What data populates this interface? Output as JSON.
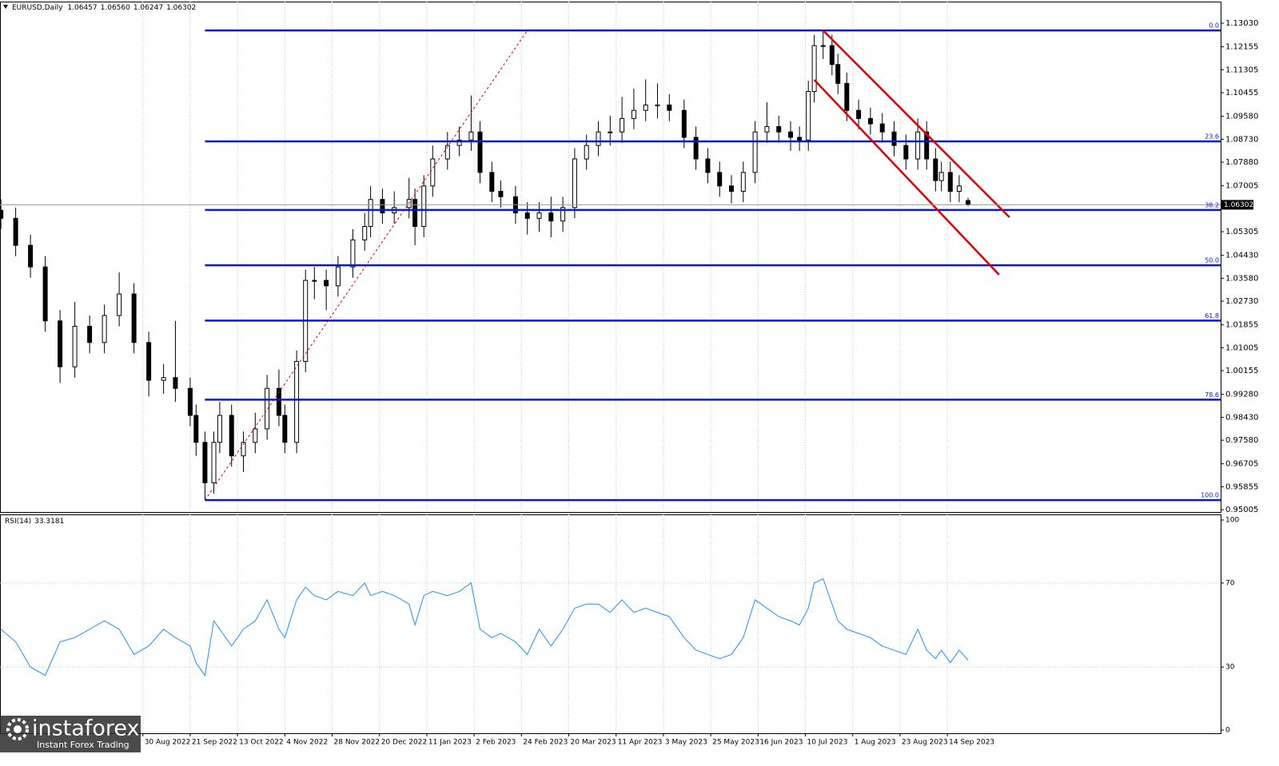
{
  "chart_data": {
    "type": "candlestick",
    "title": "EURUSD,Daily",
    "header_ohlc": [
      "1.06457",
      "1.06560",
      "1.06247",
      "1.06302"
    ],
    "x": [
      -64,
      -59,
      -54,
      -49,
      -44,
      -39,
      -34,
      -29,
      -24,
      -19,
      -14,
      -9,
      -5,
      0,
      2,
      5,
      8,
      10,
      14,
      18,
      22,
      26,
      30,
      32,
      36,
      39,
      42,
      46,
      50,
      55,
      59,
      61,
      65,
      69,
      74,
      76,
      79,
      82,
      87,
      91,
      95,
      98,
      102,
      105,
      110,
      114,
      118,
      122,
      126,
      130,
      134,
      138,
      142,
      146,
      150,
      154,
      158,
      162,
      167,
      171,
      175,
      179,
      183,
      187,
      191,
      195,
      199,
      203,
      206,
      209,
      211,
      214,
      217,
      219,
      222,
      226,
      230,
      234,
      238,
      242,
      246,
      249,
      252,
      254,
      257,
      260,
      263
    ],
    "open": [
      1.061,
      1.058,
      1.048,
      1.04,
      1.02,
      1.003,
      1.018,
      1.012,
      1.022,
      1.03,
      1.012,
      0.998,
      0.999,
      0.995,
      0.985,
      0.975,
      0.96,
      0.975,
      0.985,
      0.97,
      0.975,
      0.98,
      0.995,
      0.985,
      0.975,
      1.005,
      1.035,
      1.035,
      1.033,
      1.04,
      1.05,
      1.055,
      1.065,
      1.06,
      1.062,
      1.065,
      1.055,
      1.07,
      1.08,
      1.085,
      1.087,
      1.09,
      1.075,
      1.068,
      1.066,
      1.06,
      1.058,
      1.06,
      1.057,
      1.062,
      1.08,
      1.085,
      1.09,
      1.09,
      1.095,
      1.098,
      1.1,
      1.1,
      1.098,
      1.088,
      1.08,
      1.075,
      1.07,
      1.068,
      1.075,
      1.09,
      1.092,
      1.09,
      1.088,
      1.087,
      1.105,
      1.122,
      1.122,
      1.115,
      1.108,
      1.098,
      1.095,
      1.093,
      1.09,
      1.085,
      1.08,
      1.09,
      1.08,
      1.072,
      1.075,
      1.068,
      1.06457
    ],
    "high": [
      1.065,
      1.062,
      1.052,
      1.044,
      1.024,
      1.027,
      1.022,
      1.026,
      1.038,
      1.034,
      1.016,
      1.004,
      1.02,
      0.999,
      0.989,
      0.979,
      0.979,
      0.99,
      0.989,
      0.979,
      0.986,
      1.0,
      1.002,
      0.989,
      1.009,
      1.039,
      1.04,
      1.039,
      1.044,
      1.054,
      1.06,
      1.07,
      1.069,
      1.068,
      1.073,
      1.069,
      1.074,
      1.085,
      1.09,
      1.092,
      1.1035,
      1.094,
      1.079,
      1.072,
      1.07,
      1.064,
      1.064,
      1.066,
      1.066,
      1.084,
      1.089,
      1.094,
      1.096,
      1.103,
      1.106,
      1.1095,
      1.108,
      1.104,
      1.102,
      1.092,
      1.084,
      1.079,
      1.074,
      1.079,
      1.094,
      1.101,
      1.096,
      1.094,
      1.092,
      1.109,
      1.126,
      1.1276,
      1.126,
      1.119,
      1.112,
      1.102,
      1.099,
      1.097,
      1.094,
      1.089,
      1.095,
      1.094,
      1.084,
      1.079,
      1.079,
      1.074,
      1.0656
    ],
    "low": [
      1.054,
      1.044,
      1.036,
      1.016,
      0.997,
      0.999,
      1.008,
      1.008,
      1.018,
      1.008,
      0.992,
      0.993,
      0.99,
      0.981,
      0.97,
      0.9535,
      0.956,
      0.971,
      0.966,
      0.964,
      0.971,
      0.976,
      0.981,
      0.971,
      0.971,
      1.001,
      1.028,
      1.024,
      1.029,
      1.036,
      1.046,
      1.051,
      1.056,
      1.056,
      1.058,
      1.048,
      1.051,
      1.066,
      1.076,
      1.081,
      1.083,
      1.071,
      1.064,
      1.062,
      1.056,
      1.052,
      1.053,
      1.051,
      1.053,
      1.058,
      1.076,
      1.081,
      1.085,
      1.086,
      1.091,
      1.094,
      1.095,
      1.094,
      1.084,
      1.076,
      1.071,
      1.066,
      1.0635,
      1.064,
      1.071,
      1.086,
      1.086,
      1.083,
      1.083,
      1.083,
      1.101,
      1.117,
      1.111,
      1.104,
      1.094,
      1.091,
      1.089,
      1.086,
      1.081,
      1.076,
      1.076,
      1.076,
      1.068,
      1.068,
      1.064,
      1.064,
      1.06247
    ],
    "close": [
      1.058,
      1.048,
      1.04,
      1.02,
      1.003,
      1.018,
      1.012,
      1.022,
      1.03,
      1.012,
      0.998,
      0.999,
      0.995,
      0.985,
      0.975,
      0.96,
      0.975,
      0.985,
      0.97,
      0.975,
      0.98,
      0.995,
      0.985,
      0.975,
      1.005,
      1.035,
      1.035,
      1.033,
      1.04,
      1.05,
      1.055,
      1.065,
      1.06,
      1.062,
      1.065,
      1.055,
      1.07,
      1.08,
      1.085,
      1.087,
      1.09,
      1.075,
      1.068,
      1.066,
      1.06,
      1.058,
      1.06,
      1.057,
      1.062,
      1.08,
      1.085,
      1.09,
      1.09,
      1.095,
      1.098,
      1.1,
      1.1,
      1.098,
      1.088,
      1.08,
      1.075,
      1.07,
      1.068,
      1.075,
      1.09,
      1.092,
      1.09,
      1.088,
      1.087,
      1.105,
      1.122,
      1.122,
      1.115,
      1.108,
      1.098,
      1.095,
      1.093,
      1.09,
      1.085,
      1.08,
      1.09,
      1.08,
      1.072,
      1.075,
      1.068,
      1.07,
      1.06302
    ],
    "color_up": "#ffffff",
    "color_down": "#000000",
    "xlim": [
      -64.3,
      348.4
    ],
    "xticks": [
      {
        "value": -16,
        "label": "30 Aug 2022"
      },
      {
        "value": 0,
        "label": "21 Sep 2022"
      },
      {
        "value": 16,
        "label": "13 Oct 2022"
      },
      {
        "value": 32,
        "label": "4 Nov 2022"
      },
      {
        "value": 48,
        "label": "28 Nov 2022"
      },
      {
        "value": 64,
        "label": "20 Dec 2022"
      },
      {
        "value": 80,
        "label": "11 Jan 2023"
      },
      {
        "value": 96,
        "label": "2 Feb 2023"
      },
      {
        "value": 112,
        "label": "24 Feb 2023"
      },
      {
        "value": 128,
        "label": "20 Mar 2023"
      },
      {
        "value": 144,
        "label": "11 Apr 2023"
      },
      {
        "value": 160,
        "label": "3 May 2023"
      },
      {
        "value": 176,
        "label": "25 May 2023"
      },
      {
        "value": 192,
        "label": "16 Jun 2023"
      },
      {
        "value": 208,
        "label": "10 Jul 2023"
      },
      {
        "value": 224,
        "label": "1 Aug 2023"
      },
      {
        "value": 240,
        "label": "23 Aug 2023"
      },
      {
        "value": 256,
        "label": "14 Sep 2023"
      }
    ],
    "ylim": [
      0.9492,
      1.1383
    ],
    "yticks": [
      {
        "value": 1.1303,
        "label": "1.13030"
      },
      1.12155,
      1.11305,
      1.10455,
      {
        "value": 1.0958,
        "label": "1.09580"
      },
      {
        "value": 1.0873,
        "label": "1.08730"
      },
      {
        "value": 1.0788,
        "label": "1.07880"
      },
      1.07005,
      1.05305,
      {
        "value": 1.0443,
        "label": "1.04430"
      },
      {
        "value": 1.0358,
        "label": "1.03580"
      },
      {
        "value": 1.0273,
        "label": "1.02730"
      },
      1.01855,
      1.01005,
      1.00155,
      {
        "value": 0.9928,
        "label": "0.99280"
      },
      {
        "value": 0.9843,
        "label": "0.98430"
      },
      {
        "value": 0.9758,
        "label": "0.97580"
      },
      0.96705,
      0.95855,
      0.95005
    ],
    "grid": true,
    "fib_color": "#0b17d6",
    "fib_levels": [
      {
        "value": 1.1276,
        "label": "0.0"
      },
      {
        "value": 1.0865,
        "label": "23.6"
      },
      {
        "value": 1.0611,
        "label": "38.2"
      },
      {
        "value": 1.0406,
        "label": "50.0"
      },
      {
        "value": 1.0201,
        "label": "61.8"
      },
      {
        "value": 0.9908,
        "label": "78.6"
      },
      {
        "value": 0.9536,
        "label": "100.0"
      }
    ],
    "channel_color": "#e00000",
    "channel": [
      [
        {
          "x": 214,
          "y": 1.1276
        },
        {
          "x": 277,
          "y": 1.0584
        }
      ],
      [
        {
          "x": 211,
          "y": 1.1093
        },
        {
          "x": 273.5,
          "y": 1.0371
        }
      ]
    ],
    "anchor_line": [
      {
        "x": 5,
        "y": 0.9536
      },
      {
        "x": 114,
        "y": 1.1276
      }
    ],
    "rsi": {
      "name": "RSI(14)",
      "color": "#1e90ff",
      "ylim": [
        0,
        100
      ],
      "yticks": [
        100,
        70,
        30,
        0
      ],
      "values": [
        48,
        42,
        30,
        26,
        42,
        44,
        48,
        52,
        48,
        36,
        40,
        48,
        44,
        40,
        32,
        26,
        52,
        48,
        40,
        48,
        52,
        62,
        48,
        44,
        62,
        68,
        64,
        62,
        66,
        64,
        70,
        64,
        66,
        64,
        60,
        50,
        64,
        66,
        64,
        66,
        70,
        48,
        44,
        46,
        42,
        36,
        48,
        40,
        48,
        58,
        60,
        60,
        56,
        62,
        56,
        58,
        56,
        54,
        44,
        38,
        36,
        34,
        36,
        44,
        62,
        58,
        54,
        52,
        50,
        58,
        70,
        72,
        60,
        52,
        48,
        46,
        44,
        40,
        38,
        36,
        48,
        38,
        34,
        38,
        32,
        38,
        33.3181
      ]
    }
  },
  "watermark": {
    "brand": "instaforex",
    "tagline": "Instant Forex Trading"
  }
}
